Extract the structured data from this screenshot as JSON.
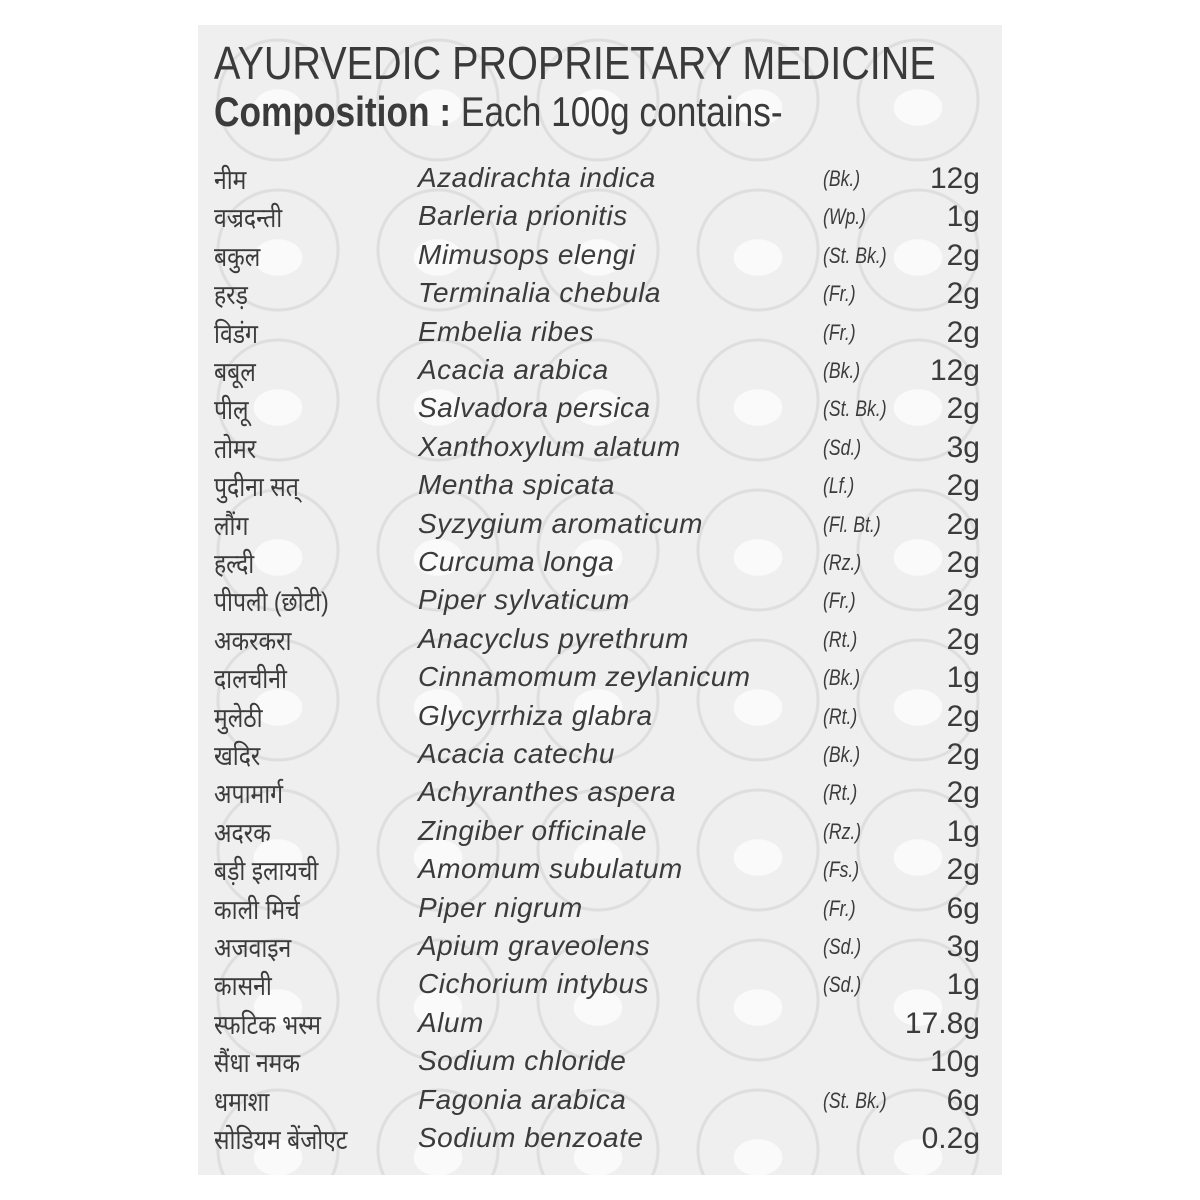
{
  "title": "AYURVEDIC PROPRIETARY MEDICINE",
  "composition_label": "Composition :",
  "composition_text": "Each 100g contains-",
  "ingredients": [
    {
      "hindi": "नीम",
      "latin": "Azadirachta indica",
      "part": "(Bk.)",
      "amount": "12g"
    },
    {
      "hindi": "वज्रदन्ती",
      "latin": "Barleria prionitis",
      "part": "(Wp.)",
      "amount": "1g"
    },
    {
      "hindi": "बकुल",
      "latin": "Mimusops elengi",
      "part": "(St. Bk.)",
      "amount": "2g"
    },
    {
      "hindi": "हरड़",
      "latin": "Terminalia chebula",
      "part": "(Fr.)",
      "amount": "2g"
    },
    {
      "hindi": "विडंग",
      "latin": "Embelia ribes",
      "part": "(Fr.)",
      "amount": "2g"
    },
    {
      "hindi": "बबूल",
      "latin": "Acacia arabica",
      "part": "(Bk.)",
      "amount": "12g"
    },
    {
      "hindi": "पीलू",
      "latin": "Salvadora persica",
      "part": "(St. Bk.)",
      "amount": "2g"
    },
    {
      "hindi": "तोमर",
      "latin": "Xanthoxylum alatum",
      "part": "(Sd.)",
      "amount": "3g"
    },
    {
      "hindi": "पुदीना सत्",
      "latin": "Mentha spicata",
      "part": "(Lf.)",
      "amount": "2g"
    },
    {
      "hindi": "लौंग",
      "latin": "Syzygium aromaticum",
      "part": "(Fl. Bt.)",
      "amount": "2g"
    },
    {
      "hindi": "हल्दी",
      "latin": "Curcuma longa",
      "part": "(Rz.)",
      "amount": "2g"
    },
    {
      "hindi": "पीपली (छोटी)",
      "latin": "Piper sylvaticum",
      "part": "(Fr.)",
      "amount": "2g"
    },
    {
      "hindi": "अकरकरा",
      "latin": "Anacyclus pyrethrum",
      "part": "(Rt.)",
      "amount": "2g"
    },
    {
      "hindi": "दालचीनी",
      "latin": "Cinnamomum zeylanicum",
      "part": "(Bk.)",
      "amount": "1g"
    },
    {
      "hindi": "मुलेठी",
      "latin": "Glycyrrhiza glabra",
      "part": "(Rt.)",
      "amount": "2g"
    },
    {
      "hindi": "खदिर",
      "latin": "Acacia catechu",
      "part": "(Bk.)",
      "amount": "2g"
    },
    {
      "hindi": "अपामार्ग",
      "latin": "Achyranthes aspera",
      "part": "(Rt.)",
      "amount": "2g"
    },
    {
      "hindi": "अदरक",
      "latin": "Zingiber officinale",
      "part": "(Rz.)",
      "amount": "1g"
    },
    {
      "hindi": "बड़ी इलायची",
      "latin": "Amomum subulatum",
      "part": "(Fs.)",
      "amount": "2g"
    },
    {
      "hindi": "काली मिर्च",
      "latin": "Piper nigrum",
      "part": "(Fr.)",
      "amount": "6g"
    },
    {
      "hindi": "अजवाइन",
      "latin": "Apium graveolens",
      "part": "(Sd.)",
      "amount": "3g"
    },
    {
      "hindi": "कासनी",
      "latin": "Cichorium intybus",
      "part": "(Sd.)",
      "amount": "1g"
    },
    {
      "hindi": "स्फटिक भस्म",
      "latin": "Alum",
      "part": "",
      "amount": "17.8g"
    },
    {
      "hindi": "सैंधा नमक",
      "latin": "Sodium chloride",
      "part": "",
      "amount": "10g"
    },
    {
      "hindi": "धमाशा",
      "latin": "Fagonia arabica",
      "part": "(St. Bk.)",
      "amount": "6g"
    },
    {
      "hindi": "सोडियम बेंजोएट",
      "latin": "Sodium  benzoate",
      "part": "",
      "amount": "0.2g"
    }
  ]
}
